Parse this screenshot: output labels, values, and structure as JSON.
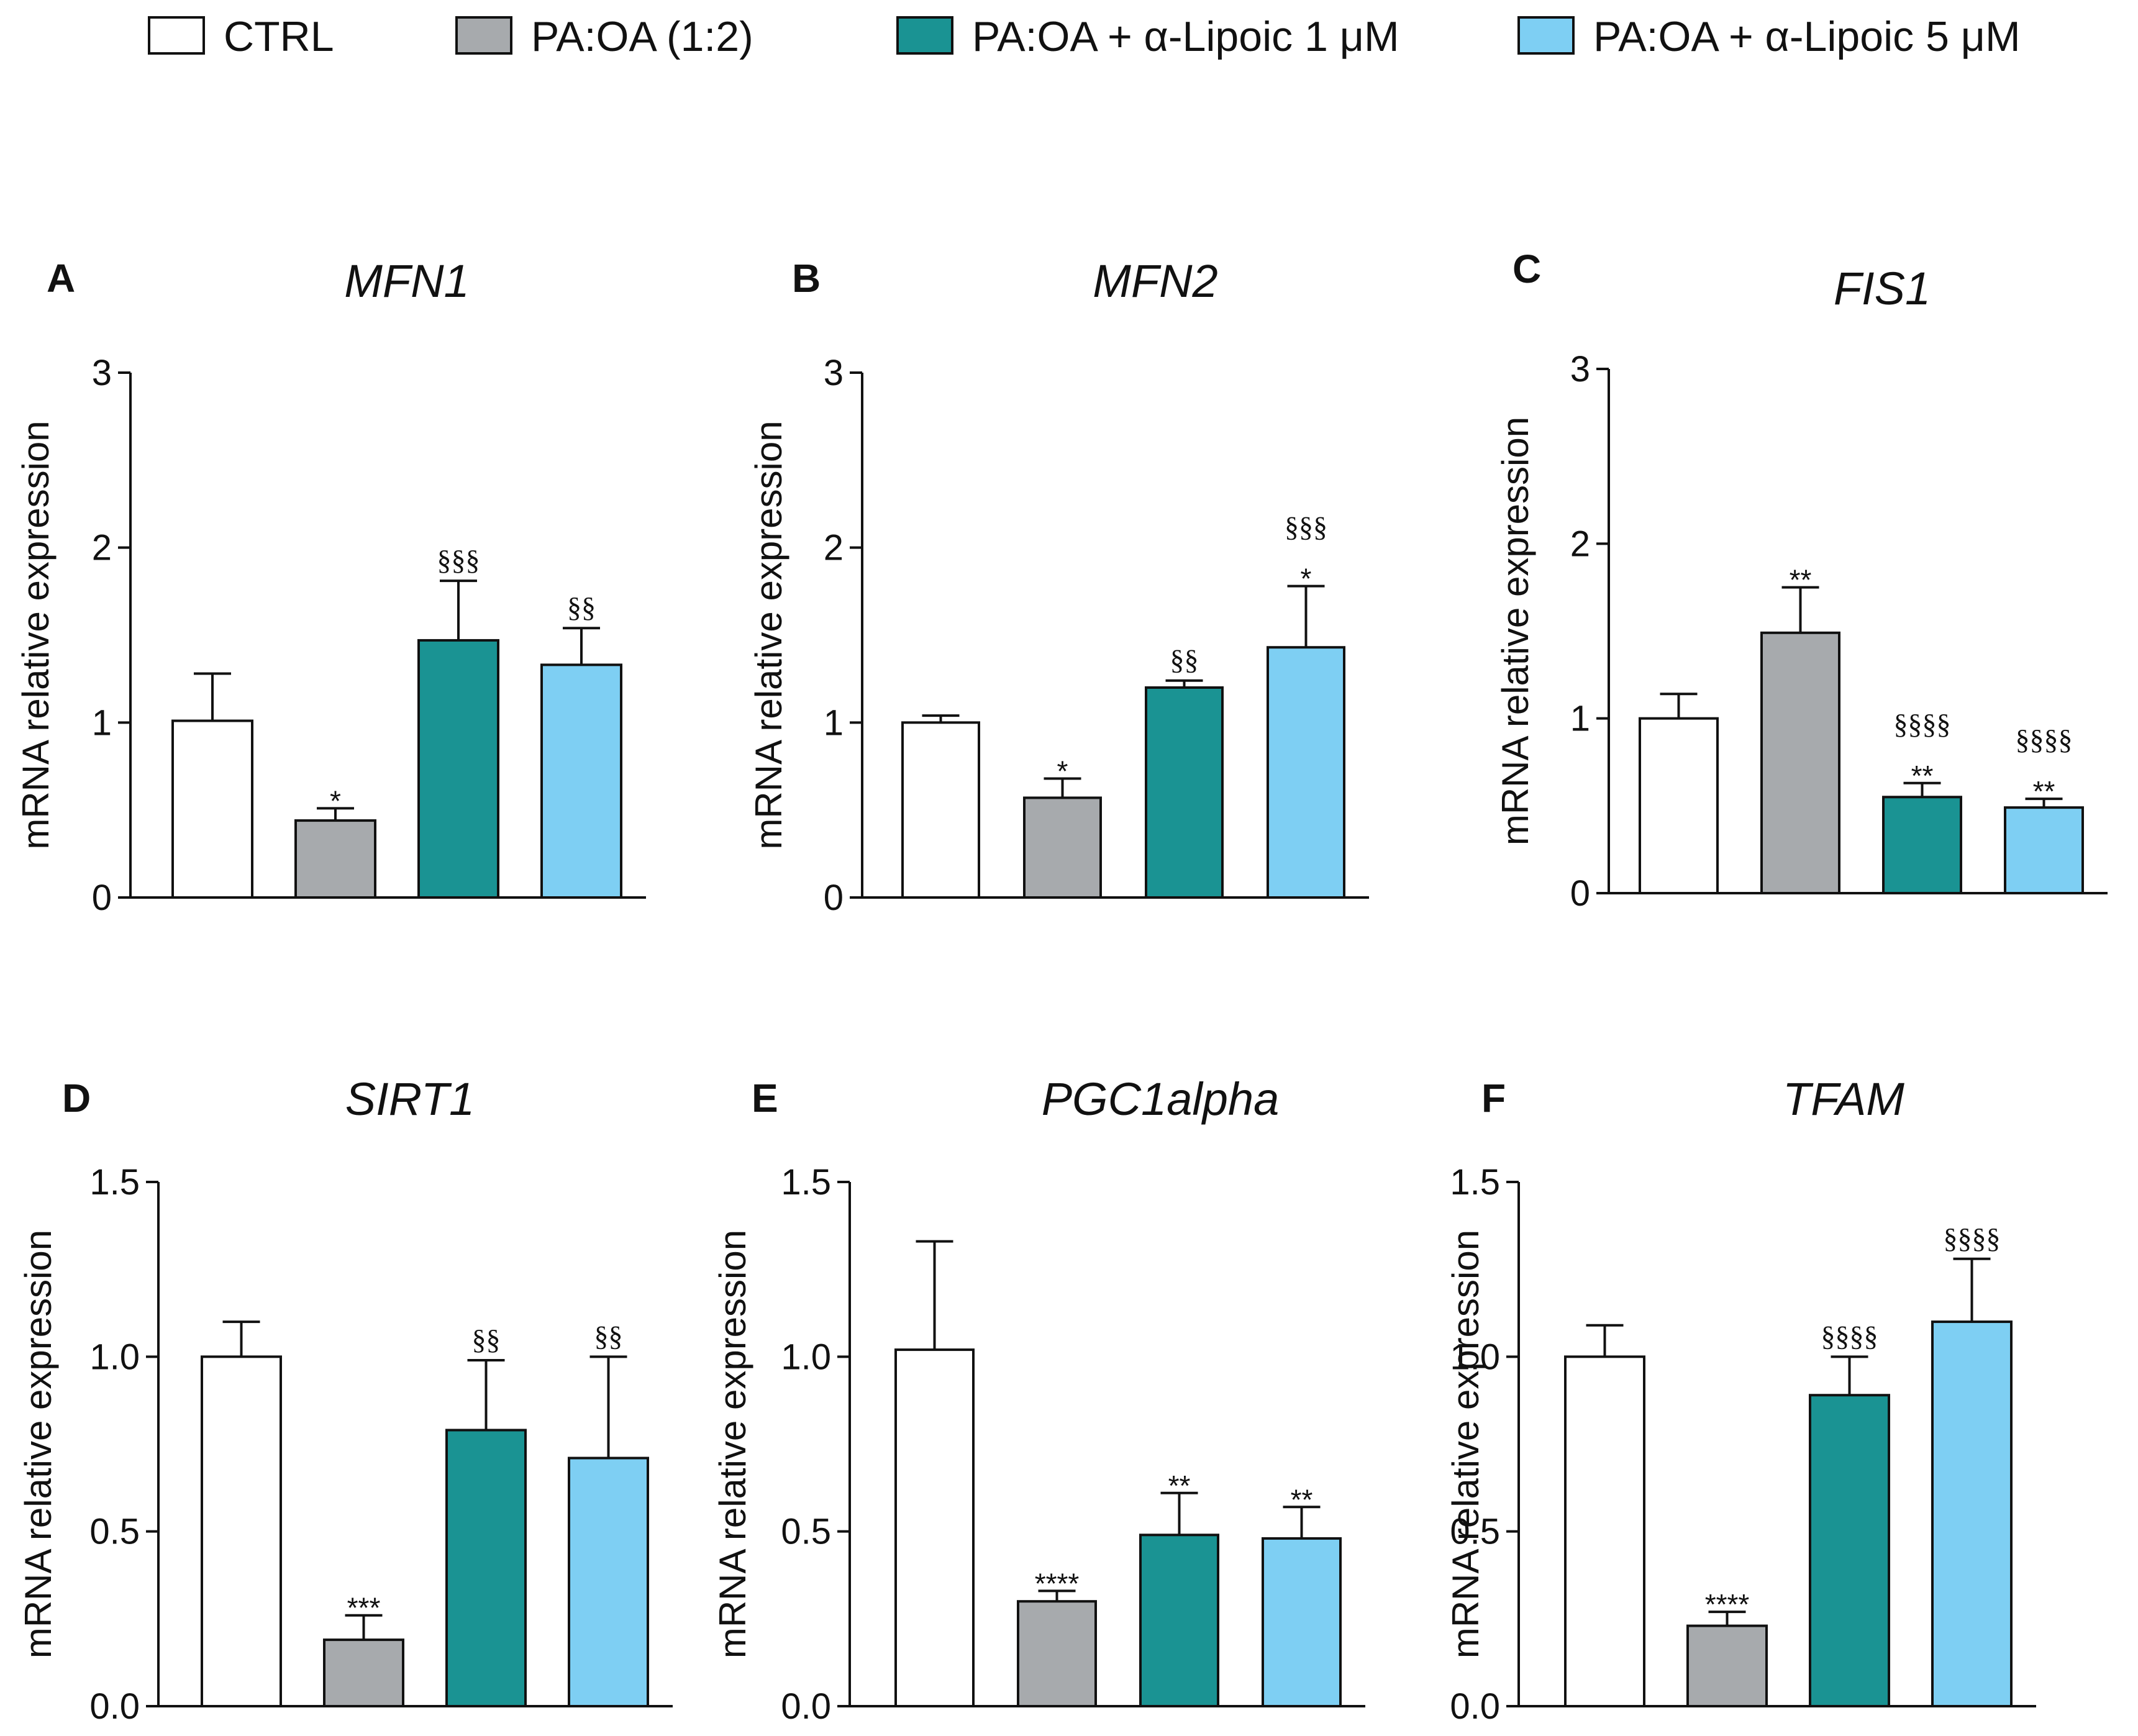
{
  "legend": [
    {
      "label": "CTRL",
      "color": "#ffffff"
    },
    {
      "label": "PA:OA (1:2)",
      "color": "#a7aaad"
    },
    {
      "label": "PA:OA + α-Lipoic 1 μM",
      "color": "#1a9393"
    },
    {
      "label": "PA:OA + α-Lipoic 5 μM",
      "color": "#7ecff3"
    }
  ],
  "chart_data": [
    {
      "type": "bar",
      "panel": "A",
      "title": "MFN1",
      "ylabel": "mRNA relative expression",
      "ylim": [
        0,
        3
      ],
      "yticks": [
        "0",
        "1",
        "2",
        "3"
      ],
      "categories": [
        "CTRL",
        "PA:OA (1:2)",
        "PA:OA + α-Lipoic 1 μM",
        "PA:OA + α-Lipoic 5 μM"
      ],
      "values": [
        1.01,
        0.44,
        1.47,
        1.33
      ],
      "errors": [
        0.27,
        0.07,
        0.34,
        0.21
      ],
      "annotations": [
        [
          ""
        ],
        [
          "*"
        ],
        [
          "§§§"
        ],
        [
          "§§"
        ]
      ]
    },
    {
      "type": "bar",
      "panel": "B",
      "title": "MFN2",
      "ylabel": "mRNA relative expression",
      "ylim": [
        0,
        3
      ],
      "yticks": [
        "0",
        "1",
        "2",
        "3"
      ],
      "categories": [
        "CTRL",
        "PA:OA (1:2)",
        "PA:OA + α-Lipoic 1 μM",
        "PA:OA + α-Lipoic 5 μM"
      ],
      "values": [
        1.0,
        0.57,
        1.2,
        1.43
      ],
      "errors": [
        0.04,
        0.11,
        0.04,
        0.35
      ],
      "annotations": [
        [
          ""
        ],
        [
          "*"
        ],
        [
          "§§"
        ],
        [
          "*",
          "§§§"
        ]
      ]
    },
    {
      "type": "bar",
      "panel": "C",
      "title": "FIS1",
      "ylabel": "mRNA relative expression",
      "ylim": [
        0,
        3
      ],
      "yticks": [
        "0",
        "1",
        "2",
        "3"
      ],
      "categories": [
        "CTRL",
        "PA:OA (1:2)",
        "PA:OA + α-Lipoic 1 μM",
        "PA:OA + α-Lipoic 5 μM"
      ],
      "values": [
        1.0,
        1.49,
        0.55,
        0.49
      ],
      "errors": [
        0.14,
        0.26,
        0.08,
        0.05
      ],
      "annotations": [
        [
          ""
        ],
        [
          "**"
        ],
        [
          "**",
          "§§§§"
        ],
        [
          "**",
          "§§§§"
        ]
      ]
    },
    {
      "type": "bar",
      "panel": "D",
      "title": "SIRT1",
      "ylabel": "mRNA relative expression",
      "ylim": [
        0,
        1.5
      ],
      "yticks": [
        "0.0",
        "0.5",
        "1.0",
        "1.5"
      ],
      "categories": [
        "CTRL",
        "PA:OA (1:2)",
        "PA:OA + α-Lipoic 1 μM",
        "PA:OA + α-Lipoic 5 μM"
      ],
      "values": [
        1.0,
        0.19,
        0.79,
        0.71
      ],
      "errors": [
        0.1,
        0.07,
        0.2,
        0.29
      ],
      "annotations": [
        [
          ""
        ],
        [
          "***"
        ],
        [
          "§§"
        ],
        [
          "§§"
        ]
      ]
    },
    {
      "type": "bar",
      "panel": "E",
      "title": "PGC1alpha",
      "ylabel": "mRNA relative expression",
      "ylim": [
        0,
        1.5
      ],
      "yticks": [
        "0.0",
        "0.5",
        "1.0",
        "1.5"
      ],
      "categories": [
        "CTRL",
        "PA:OA (1:2)",
        "PA:OA + α-Lipoic 1 μM",
        "PA:OA + α-Lipoic 5 μM"
      ],
      "values": [
        1.02,
        0.3,
        0.49,
        0.48
      ],
      "errors": [
        0.31,
        0.03,
        0.12,
        0.09
      ],
      "annotations": [
        [
          ""
        ],
        [
          "****"
        ],
        [
          "**"
        ],
        [
          "**"
        ]
      ]
    },
    {
      "type": "bar",
      "panel": "F",
      "title": "TFAM",
      "ylabel": "mRNA relative expression",
      "ylim": [
        0,
        1.5
      ],
      "yticks": [
        "0.0",
        "0.5",
        "1.0",
        "1.5"
      ],
      "categories": [
        "CTRL",
        "PA:OA (1:2)",
        "PA:OA + α-Lipoic 1 μM",
        "PA:OA + α-Lipoic 5 μM"
      ],
      "values": [
        1.0,
        0.23,
        0.89,
        1.1
      ],
      "errors": [
        0.09,
        0.04,
        0.11,
        0.18
      ],
      "annotations": [
        [
          ""
        ],
        [
          "****"
        ],
        [
          "§§§§"
        ],
        [
          "§§§§"
        ]
      ]
    }
  ]
}
